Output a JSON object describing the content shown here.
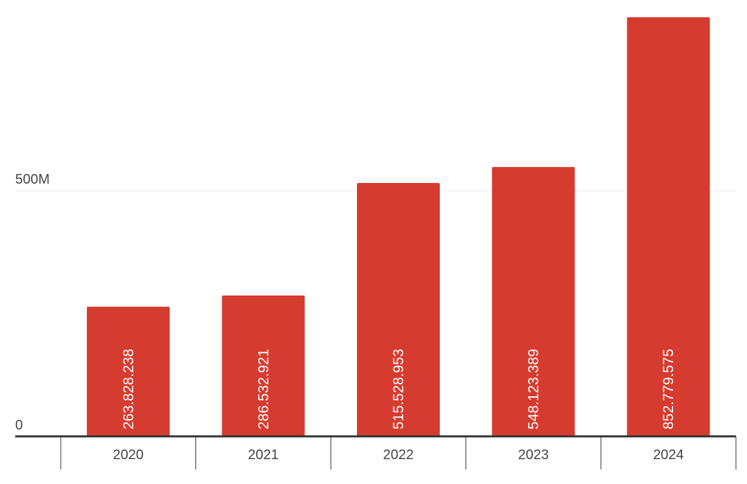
{
  "chart_data": {
    "type": "bar",
    "categories": [
      "2020",
      "2021",
      "2022",
      "2023",
      "2024"
    ],
    "values": [
      263828238,
      286532921,
      515528953,
      548123389,
      852779575
    ],
    "value_labels": [
      "263.828.238",
      "286.532.921",
      "515.528.953",
      "548.123.389",
      "852.779.575"
    ],
    "y_ticks": [
      {
        "value": 0,
        "label": "0"
      },
      {
        "value": 500000000,
        "label": "500M"
      }
    ],
    "ylim": [
      0,
      852779575
    ],
    "grid": true,
    "bar_color": "#d63b2f",
    "title": "",
    "xlabel": "",
    "ylabel": ""
  }
}
